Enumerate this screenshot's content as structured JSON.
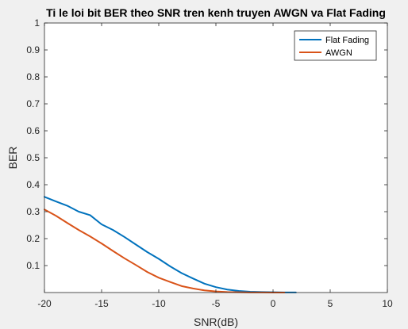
{
  "chart_data": {
    "type": "line",
    "title": "Ti le loi bit BER theo SNR tren kenh truyen AWGN va Flat Fading",
    "xlabel": "SNR(dB)",
    "ylabel": "BER",
    "xlim": [
      -20,
      10
    ],
    "ylim": [
      0,
      1
    ],
    "xticks": [
      -20,
      -15,
      -10,
      -5,
      0,
      5,
      10
    ],
    "yticks": [
      0.1,
      0.2,
      0.3,
      0.4,
      0.5,
      0.6,
      0.7,
      0.8,
      0.9,
      1
    ],
    "grid": false,
    "legend_position": "top-right",
    "series": [
      {
        "name": "Flat Fading",
        "color": "#0072BD",
        "x": [
          -20,
          -19,
          -18,
          -17,
          -16,
          -15,
          -14,
          -13,
          -12,
          -11,
          -10,
          -9,
          -8,
          -7,
          -6,
          -5,
          -4,
          -3,
          -2,
          -1,
          0,
          1,
          2
        ],
        "y": [
          0.355,
          0.338,
          0.322,
          0.3,
          0.287,
          0.253,
          0.232,
          0.206,
          0.178,
          0.15,
          0.125,
          0.097,
          0.072,
          0.052,
          0.033,
          0.02,
          0.011,
          0.006,
          0.003,
          0.002,
          0.001,
          0.0005,
          0.0003
        ]
      },
      {
        "name": "AWGN",
        "color": "#D95319",
        "x": [
          -20,
          -19,
          -18,
          -17,
          -16,
          -15,
          -14,
          -13,
          -12,
          -11,
          -10,
          -9,
          -8,
          -7,
          -6,
          -5,
          -4,
          -3,
          -2,
          -1,
          0,
          1
        ],
        "y": [
          0.308,
          0.285,
          0.258,
          0.232,
          0.208,
          0.182,
          0.154,
          0.127,
          0.102,
          0.076,
          0.055,
          0.039,
          0.024,
          0.015,
          0.008,
          0.004,
          0.002,
          0.001,
          0.0005,
          0.0002,
          0.0001,
          0.0001
        ]
      }
    ]
  }
}
